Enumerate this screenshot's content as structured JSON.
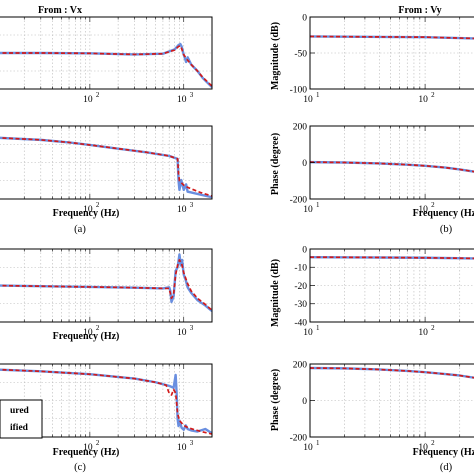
{
  "chart_data": [
    {
      "id": "a_mag",
      "type": "line",
      "title": "From : Vx",
      "xlabel": "",
      "ylabel": "",
      "xscale": "log",
      "xlim": [
        10,
        2000
      ],
      "xticks": [
        {
          "v": 100,
          "base": "10",
          "exp": "2"
        },
        {
          "v": 1000,
          "base": "10",
          "exp": "3"
        }
      ],
      "ylim": [
        -1,
        1
      ],
      "yticks": [],
      "grid": true,
      "series": [
        {
          "style": "measured",
          "x": [
            10,
            30,
            100,
            300,
            600,
            800,
            880,
            920,
            950,
            1000,
            1060,
            1100,
            1200,
            1400,
            1600,
            2000
          ],
          "y": [
            0.0,
            0.0,
            -0.01,
            -0.04,
            -0.02,
            0.1,
            0.22,
            0.25,
            0.18,
            -0.05,
            -0.25,
            -0.12,
            -0.32,
            -0.5,
            -0.7,
            -0.95
          ]
        },
        {
          "style": "identified",
          "x": [
            10,
            30,
            100,
            300,
            600,
            800,
            880,
            920,
            950,
            1000,
            1100,
            1200,
            1400,
            1600,
            2000
          ],
          "y": [
            0.0,
            0.0,
            -0.01,
            -0.04,
            -0.02,
            0.08,
            0.18,
            0.2,
            0.12,
            -0.05,
            -0.2,
            -0.32,
            -0.5,
            -0.68,
            -0.92
          ]
        }
      ]
    },
    {
      "id": "a_phase",
      "type": "line",
      "xlabel": "Frequency (Hz)",
      "ylabel": "",
      "xscale": "log",
      "xlim": [
        10,
        2000
      ],
      "xticks": [
        {
          "v": 100,
          "base": "10",
          "exp": "2"
        },
        {
          "v": 1000,
          "base": "10",
          "exp": "3"
        }
      ],
      "ylim": [
        -1,
        1
      ],
      "yticks": [],
      "grid": true,
      "caption": "(a)",
      "series": [
        {
          "style": "measured",
          "x": [
            10,
            30,
            60,
            100,
            200,
            400,
            700,
            860,
            880,
            900,
            940,
            1000,
            1060,
            1100,
            1200,
            1500,
            2000
          ],
          "y": [
            0.68,
            0.62,
            0.55,
            0.48,
            0.38,
            0.28,
            0.18,
            0.1,
            -0.5,
            -0.75,
            -0.48,
            -0.75,
            -0.6,
            -0.8,
            -0.82,
            -0.88,
            -0.95
          ]
        },
        {
          "style": "identified",
          "x": [
            10,
            30,
            60,
            100,
            200,
            400,
            700,
            860,
            880,
            900,
            940,
            1000,
            1100,
            1200,
            1500,
            2000
          ],
          "y": [
            0.68,
            0.62,
            0.55,
            0.48,
            0.38,
            0.28,
            0.18,
            0.1,
            -0.3,
            -0.5,
            -0.55,
            -0.62,
            -0.68,
            -0.72,
            -0.82,
            -0.92
          ]
        }
      ]
    },
    {
      "id": "b_mag",
      "type": "line",
      "title": "From : Vy",
      "xlabel": "",
      "ylabel": "Magnitude (dB)",
      "xscale": "log",
      "xlim": [
        10,
        300
      ],
      "xticks": [
        {
          "v": 10,
          "base": "10",
          "exp": "1"
        },
        {
          "v": 100,
          "base": "10",
          "exp": "2"
        }
      ],
      "ylim": [
        -100,
        0
      ],
      "yticks": [
        0,
        -50,
        -100
      ],
      "grid": true,
      "series": [
        {
          "style": "measured",
          "x": [
            10,
            30,
            100,
            300
          ],
          "y": [
            -27,
            -27.5,
            -28,
            -30
          ]
        },
        {
          "style": "identified",
          "x": [
            10,
            30,
            100,
            300
          ],
          "y": [
            -27,
            -27.5,
            -28,
            -30
          ]
        }
      ]
    },
    {
      "id": "b_phase",
      "type": "line",
      "xlabel": "Frequency (Hz)",
      "ylabel": "Phase (degree)",
      "xscale": "log",
      "xlim": [
        10,
        300
      ],
      "xticks": [
        {
          "v": 10,
          "base": "10",
          "exp": "1"
        },
        {
          "v": 100,
          "base": "10",
          "exp": "2"
        }
      ],
      "ylim": [
        -200,
        200
      ],
      "yticks": [
        200,
        0,
        -200
      ],
      "grid": true,
      "caption": "(b)",
      "series": [
        {
          "style": "measured",
          "x": [
            10,
            20,
            40,
            70,
            100,
            150,
            200,
            300
          ],
          "y": [
            2,
            0,
            -5,
            -12,
            -18,
            -28,
            -38,
            -55
          ]
        },
        {
          "style": "identified",
          "x": [
            10,
            20,
            40,
            70,
            100,
            150,
            200,
            300
          ],
          "y": [
            2,
            0,
            -5,
            -12,
            -18,
            -28,
            -38,
            -55
          ]
        }
      ]
    },
    {
      "id": "c_mag",
      "type": "line",
      "xlabel": "Frequency (Hz)",
      "ylabel": "",
      "xscale": "log",
      "xlim": [
        10,
        2000
      ],
      "xticks": [
        {
          "v": 100,
          "base": "10",
          "exp": "2"
        },
        {
          "v": 1000,
          "base": "10",
          "exp": "3"
        }
      ],
      "ylim": [
        -1,
        1
      ],
      "yticks": [],
      "grid": true,
      "series": [
        {
          "style": "measured",
          "x": [
            10,
            30,
            100,
            300,
            600,
            700,
            720,
            740,
            780,
            820,
            860,
            900,
            930,
            960,
            1000,
            1050,
            1100,
            1200,
            1400,
            1700,
            2000
          ],
          "y": [
            0.0,
            -0.02,
            -0.04,
            -0.06,
            -0.08,
            -0.05,
            -0.15,
            -0.45,
            -0.3,
            0.4,
            0.5,
            0.85,
            0.55,
            0.7,
            0.3,
            0.15,
            -0.05,
            -0.2,
            -0.4,
            -0.55,
            -0.7
          ]
        },
        {
          "style": "identified",
          "x": [
            10,
            30,
            100,
            300,
            600,
            700,
            740,
            780,
            820,
            860,
            900,
            950,
            1000,
            1100,
            1200,
            1400,
            1700,
            2000
          ],
          "y": [
            0.0,
            -0.02,
            -0.04,
            -0.06,
            -0.08,
            -0.08,
            -0.35,
            -0.25,
            0.3,
            0.55,
            0.7,
            0.6,
            0.35,
            0.05,
            -0.15,
            -0.35,
            -0.52,
            -0.68
          ]
        }
      ]
    },
    {
      "id": "c_phase",
      "type": "line",
      "xlabel": "Frequency (Hz)",
      "ylabel": "",
      "xscale": "log",
      "xlim": [
        10,
        2000
      ],
      "xticks": [
        {
          "v": 100,
          "base": "10",
          "exp": "2"
        },
        {
          "v": 1000,
          "base": "10",
          "exp": "3"
        }
      ],
      "ylim": [
        -1,
        1
      ],
      "yticks": [],
      "grid": true,
      "caption": "(c)",
      "legend": {
        "placement": "bottom-left",
        "entries": [
          "ured",
          "ified"
        ]
      },
      "series": [
        {
          "style": "measured",
          "x": [
            10,
            30,
            100,
            300,
            500,
            700,
            780,
            820,
            840,
            860,
            880,
            900,
            950,
            1000,
            1050,
            1100,
            1200,
            1400,
            1700,
            2000
          ],
          "y": [
            0.85,
            0.8,
            0.72,
            0.6,
            0.5,
            0.4,
            0.35,
            0.7,
            0.2,
            -0.5,
            -0.7,
            -0.55,
            -0.75,
            -0.8,
            -0.68,
            -0.78,
            -0.82,
            -0.85,
            -0.78,
            -0.9
          ]
        },
        {
          "style": "identified",
          "x": [
            10,
            30,
            100,
            300,
            500,
            650,
            700,
            740,
            780,
            820,
            860,
            900,
            1000,
            1100,
            1300,
            1600,
            2000
          ],
          "y": [
            0.85,
            0.8,
            0.72,
            0.6,
            0.5,
            0.42,
            0.2,
            0.15,
            0.3,
            0.2,
            -0.35,
            -0.55,
            -0.68,
            -0.74,
            -0.8,
            -0.86,
            -0.92
          ]
        }
      ]
    },
    {
      "id": "d_mag",
      "type": "line",
      "xlabel": "",
      "ylabel": "Magnitude (dB)",
      "xscale": "log",
      "xlim": [
        10,
        300
      ],
      "xticks": [
        {
          "v": 10,
          "base": "10",
          "exp": "1"
        },
        {
          "v": 100,
          "base": "10",
          "exp": "2"
        }
      ],
      "ylim": [
        -40,
        0
      ],
      "yticks": [
        0,
        -10,
        -20,
        -30,
        -40
      ],
      "grid": true,
      "series": [
        {
          "style": "measured",
          "x": [
            10,
            30,
            100,
            300
          ],
          "y": [
            -4.5,
            -4.6,
            -4.8,
            -5.2
          ]
        },
        {
          "style": "identified",
          "x": [
            10,
            30,
            100,
            300
          ],
          "y": [
            -4.5,
            -4.6,
            -4.8,
            -5.2
          ]
        }
      ]
    },
    {
      "id": "d_phase",
      "type": "line",
      "xlabel": "Frequency (Hz)",
      "ylabel": "Phase (degree)",
      "xscale": "log",
      "xlim": [
        10,
        300
      ],
      "xticks": [
        {
          "v": 10,
          "base": "10",
          "exp": "1"
        },
        {
          "v": 100,
          "base": "10",
          "exp": "2"
        }
      ],
      "ylim": [
        -200,
        200
      ],
      "yticks": [
        200,
        0,
        -200
      ],
      "grid": true,
      "caption": "(d)",
      "series": [
        {
          "style": "measured",
          "x": [
            10,
            20,
            40,
            70,
            100,
            150,
            200,
            300
          ],
          "y": [
            178,
            176,
            170,
            162,
            155,
            145,
            137,
            120
          ]
        },
        {
          "style": "identified",
          "x": [
            10,
            20,
            40,
            70,
            100,
            150,
            200,
            300
          ],
          "y": [
            178,
            176,
            170,
            162,
            155,
            145,
            137,
            120
          ]
        }
      ]
    }
  ],
  "colors": {
    "measured": "#6a8fe0",
    "identified": "#d11a1a",
    "grid": "#b8b8b8",
    "axis": "#000000"
  }
}
